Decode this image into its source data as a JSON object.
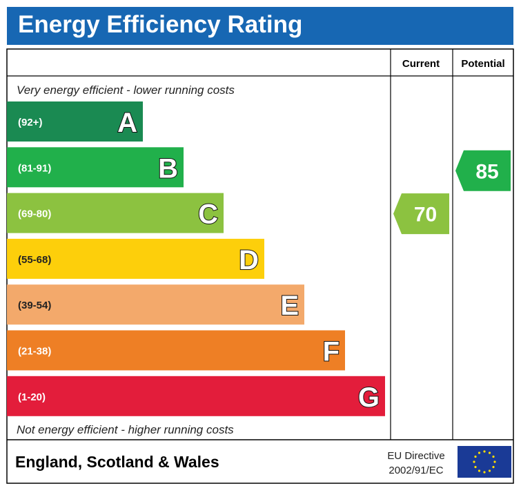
{
  "header": {
    "title": "Energy Efficiency Rating"
  },
  "columns": {
    "current": "Current",
    "potential": "Potential"
  },
  "captions": {
    "top": "Very energy efficient - lower running costs",
    "bottom": "Not energy efficient - higher running costs"
  },
  "footer": {
    "region": "England, Scotland & Wales",
    "directive_line1": "EU Directive",
    "directive_line2": "2002/91/EC"
  },
  "chart_data": {
    "type": "bar",
    "title": "Energy Efficiency Rating",
    "bands": [
      {
        "letter": "A",
        "range": "(92+)",
        "min": 92,
        "max": 100,
        "color": "#1a8a52"
      },
      {
        "letter": "B",
        "range": "(81-91)",
        "min": 81,
        "max": 91,
        "color": "#21b04b"
      },
      {
        "letter": "C",
        "range": "(69-80)",
        "min": 69,
        "max": 80,
        "color": "#8cc240"
      },
      {
        "letter": "D",
        "range": "(55-68)",
        "min": 55,
        "max": 68,
        "color": "#fdcf0b"
      },
      {
        "letter": "E",
        "range": "(39-54)",
        "min": 39,
        "max": 54,
        "color": "#f3a96b"
      },
      {
        "letter": "F",
        "range": "(21-38)",
        "min": 21,
        "max": 38,
        "color": "#ee7f25"
      },
      {
        "letter": "G",
        "range": "(1-20)",
        "min": 1,
        "max": 20,
        "color": "#e31d3b"
      }
    ],
    "current": {
      "value": 70,
      "band": "C",
      "color": "#8cc240"
    },
    "potential": {
      "value": 85,
      "band": "B",
      "color": "#21b04b"
    }
  },
  "colors": {
    "header": "#1767b3",
    "border": "#000000",
    "eu_flag": "#1a3a96",
    "eu_star": "#ffdd00"
  }
}
